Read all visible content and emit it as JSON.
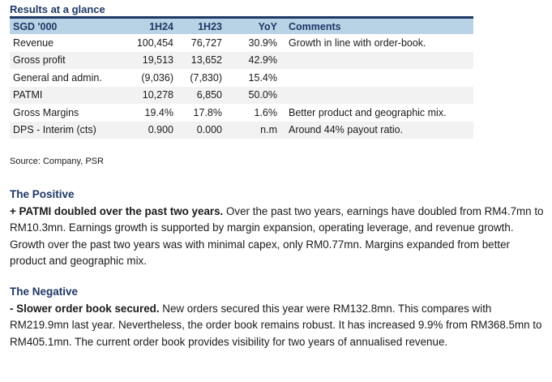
{
  "title": "Results at a glance",
  "table": {
    "headers": [
      "SGD '000",
      "1H24",
      "1H23",
      "YoY",
      "Comments"
    ],
    "rows": [
      [
        "Revenue",
        "100,454",
        "76,727",
        "30.9%",
        "Growth in line with order-book."
      ],
      [
        "Gross profit",
        "19,513",
        "13,652",
        "42.9%",
        ""
      ],
      [
        "General and admin.",
        "(9,036)",
        "(7,830)",
        "15.4%",
        ""
      ],
      [
        "PATMI",
        "10,278",
        "6,850",
        "50.0%",
        ""
      ],
      [
        "Gross Margins",
        "19.4%",
        "17.8%",
        "1.6%",
        "Better product and geographic mix."
      ],
      [
        "DPS - Interim (cts)",
        "0.900",
        "0.000",
        "n.m",
        "Around 44% payout ratio."
      ]
    ]
  },
  "source": "Source: Company, PSR",
  "positive": {
    "heading": "The Positive",
    "lead": "+ PATMI doubled over the past two years.",
    "body": " Over the past two years, earnings have doubled from RM4.7mn to RM10.3mn. Earnings growth is supported by margin expansion, operating leverage, and revenue growth. Growth over the past two years was with minimal capex, only RM0.77mn. Margins expanded from better product and geographic mix."
  },
  "negative": {
    "heading": "The Negative",
    "lead": "- Slower order book secured.",
    "body": " New orders secured this year were RM132.8mn. This compares with RM219.9mn last year. Nevertheless, the order book remains robust. It has increased 9.9% from RM368.5mn to RM405.1mn. The current order book provides visibility for two years of annualised revenue."
  }
}
